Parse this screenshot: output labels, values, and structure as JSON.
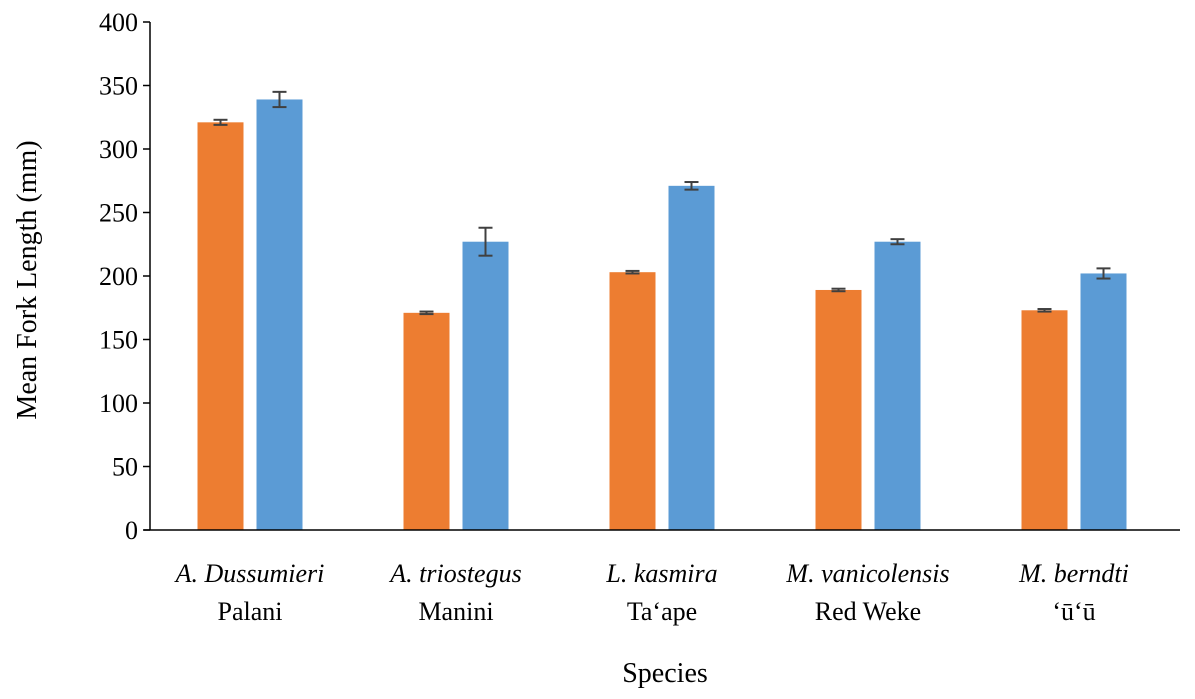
{
  "chart_data": {
    "type": "bar",
    "title": "",
    "xlabel": "Species",
    "ylabel": "Mean Fork Length (mm)",
    "ylim": [
      0,
      400
    ],
    "yticks": [
      "0",
      "50",
      "100",
      "150",
      "200",
      "250",
      "300",
      "350",
      "400"
    ],
    "grid": false,
    "legend": "none",
    "categories": [
      {
        "scientific": "A. Dussumieri",
        "common": "Palani"
      },
      {
        "scientific": "A. triostegus",
        "common": "Manini"
      },
      {
        "scientific": "L. kasmira",
        "common": "Ta‘ape"
      },
      {
        "scientific": "M. vanicolensis",
        "common": "Red Weke"
      },
      {
        "scientific": "M. berndti",
        "common": "‘ū‘ū"
      }
    ],
    "series": [
      {
        "color": "#ED7D31",
        "values": [
          321,
          171,
          203,
          189,
          173
        ],
        "error": [
          2,
          1,
          1,
          1,
          1
        ]
      },
      {
        "color": "#5B9BD5",
        "values": [
          339,
          227,
          271,
          227,
          202
        ],
        "error": [
          6,
          11,
          3,
          2,
          4
        ]
      }
    ],
    "error_bar_color": "#404040"
  }
}
